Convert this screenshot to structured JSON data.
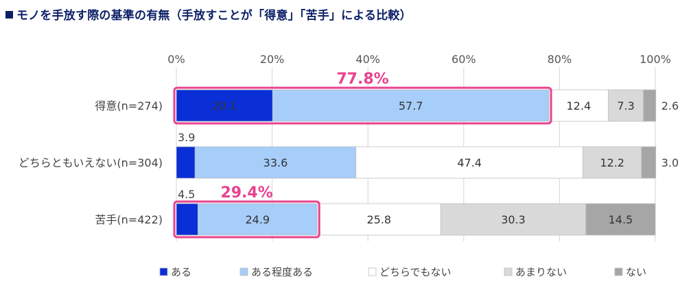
{
  "title": "モノを手放す際の基準の有無（手放すことが「得意」「苦手」による比較）",
  "chart_data": {
    "type": "bar",
    "orientation": "horizontal",
    "stacked": true,
    "unit": "%",
    "xlim": [
      0,
      100
    ],
    "x_ticks": [
      "0%",
      "20%",
      "40%",
      "60%",
      "80%",
      "100%"
    ],
    "categories": [
      "得意(n=274)",
      "どちらともいえない(n=304)",
      "苦手(n=422)"
    ],
    "series": [
      {
        "name": "ある",
        "color": "#0a2fd6",
        "values": [
          20.1,
          3.9,
          4.5
        ]
      },
      {
        "name": "ある程度ある",
        "color": "#a7cdf9",
        "values": [
          57.7,
          33.6,
          24.9
        ]
      },
      {
        "name": "どちらでもない",
        "color": "#ffffff",
        "values": [
          12.4,
          47.4,
          25.8
        ]
      },
      {
        "name": "あまりない",
        "color": "#d9d9d9",
        "values": [
          7.3,
          12.2,
          30.3
        ]
      },
      {
        "name": "ない",
        "color": "#a6a6a6",
        "values": [
          2.6,
          3.0,
          14.5
        ]
      }
    ],
    "highlights": [
      {
        "category_index": 0,
        "label": "77.8%"
      },
      {
        "category_index": 2,
        "label": "29.4%"
      }
    ],
    "highlight_color": "#e8438f",
    "legend_position": "bottom"
  }
}
